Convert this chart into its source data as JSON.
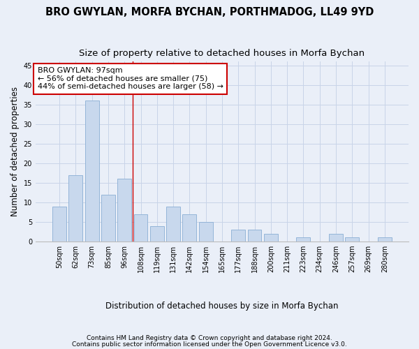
{
  "title": "BRO GWYLAN, MORFA BYCHAN, PORTHMADOG, LL49 9YD",
  "subtitle": "Size of property relative to detached houses in Morfa Bychan",
  "xlabel": "Distribution of detached houses by size in Morfa Bychan",
  "ylabel": "Number of detached properties",
  "categories": [
    "50sqm",
    "62sqm",
    "73sqm",
    "85sqm",
    "96sqm",
    "108sqm",
    "119sqm",
    "131sqm",
    "142sqm",
    "154sqm",
    "165sqm",
    "177sqm",
    "188sqm",
    "200sqm",
    "211sqm",
    "223sqm",
    "234sqm",
    "246sqm",
    "257sqm",
    "269sqm",
    "280sqm"
  ],
  "values": [
    9,
    17,
    36,
    12,
    16,
    7,
    4,
    9,
    7,
    5,
    0,
    3,
    3,
    2,
    0,
    1,
    0,
    2,
    1,
    0,
    1
  ],
  "bar_color": "#c8d8ed",
  "bar_edge_color": "#8aaed4",
  "grid_color": "#c8d4e8",
  "bg_color": "#eaeff8",
  "annotation_text": "BRO GWYLAN: 97sqm\n← 56% of detached houses are smaller (75)\n44% of semi-detached houses are larger (58) →",
  "annotation_box_color": "#ffffff",
  "annotation_box_edge": "#cc0000",
  "vline_x_index": 4.5,
  "vline_color": "#cc0000",
  "ylim": [
    0,
    46
  ],
  "yticks": [
    0,
    5,
    10,
    15,
    20,
    25,
    30,
    35,
    40,
    45
  ],
  "footer_line1": "Contains HM Land Registry data © Crown copyright and database right 2024.",
  "footer_line2": "Contains public sector information licensed under the Open Government Licence v3.0.",
  "title_fontsize": 10.5,
  "subtitle_fontsize": 9.5,
  "tick_fontsize": 7,
  "ylabel_fontsize": 8.5,
  "xlabel_fontsize": 8.5,
  "annotation_fontsize": 8,
  "footer_fontsize": 6.5
}
